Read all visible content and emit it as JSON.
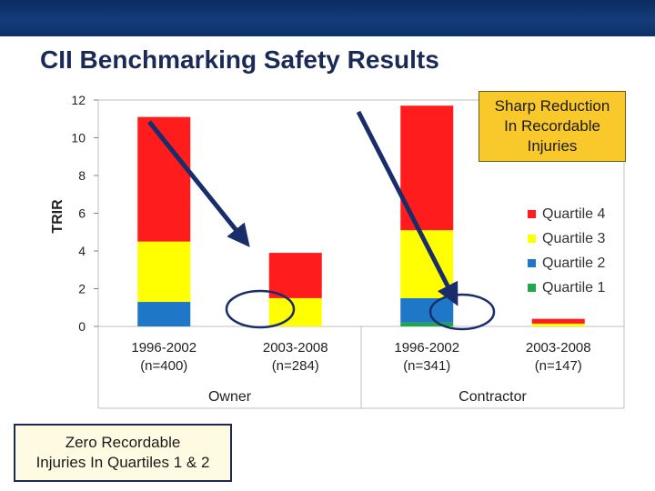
{
  "slide": {
    "title": "CII Benchmarking Safety Results"
  },
  "callouts": {
    "reduction": [
      "Sharp Reduction",
      "In Recordable",
      "Injuries"
    ],
    "zero": [
      "Zero Recordable",
      "Injuries In Quartiles 1 & 2"
    ]
  },
  "colors": {
    "title_bar": "#0d3068",
    "quartile_4": "#ff1c1c",
    "quartile_3": "#ffff00",
    "quartile_2": "#1f77c8",
    "quartile_1": "#1fa84a",
    "arrow": "#1a2d6b",
    "ellipse": "#1a2d6b",
    "callout_fill": "#f9c82a"
  },
  "chart_data": {
    "type": "bar",
    "stacked": true,
    "ylabel": "TRIR",
    "ylim": [
      0,
      12
    ],
    "yticks": [
      0,
      2,
      4,
      6,
      8,
      10,
      12
    ],
    "grid": false,
    "legend_position": "right",
    "categories": [
      "1996-2002\n(n=400)",
      "2003-2008\n(n=284)",
      "1996-2002\n(n=341)",
      "2003-2008\n(n=147)"
    ],
    "category_lines": [
      [
        "1996-2002",
        "(n=400)"
      ],
      [
        "2003-2008",
        "(n=284)"
      ],
      [
        "1996-2002",
        "(n=341)"
      ],
      [
        "2003-2008",
        "(n=147)"
      ]
    ],
    "groups": [
      {
        "label": "Owner",
        "categories": [
          0,
          1
        ]
      },
      {
        "label": "Contractor",
        "categories": [
          2,
          3
        ]
      }
    ],
    "series": [
      {
        "name": "Quartile 1",
        "color": "#1fa84a",
        "values": [
          0.0,
          0.0,
          0.2,
          0.0
        ]
      },
      {
        "name": "Quartile 2",
        "color": "#1f77c8",
        "values": [
          1.3,
          0.0,
          1.3,
          0.0
        ]
      },
      {
        "name": "Quartile 3",
        "color": "#ffff00",
        "values": [
          3.2,
          1.5,
          3.6,
          0.15
        ]
      },
      {
        "name": "Quartile 4",
        "color": "#ff1c1c",
        "values": [
          6.6,
          2.4,
          6.6,
          0.25
        ]
      }
    ],
    "legend_order": [
      "Quartile 4",
      "Quartile 3",
      "Quartile 2",
      "Quartile 1"
    ]
  }
}
